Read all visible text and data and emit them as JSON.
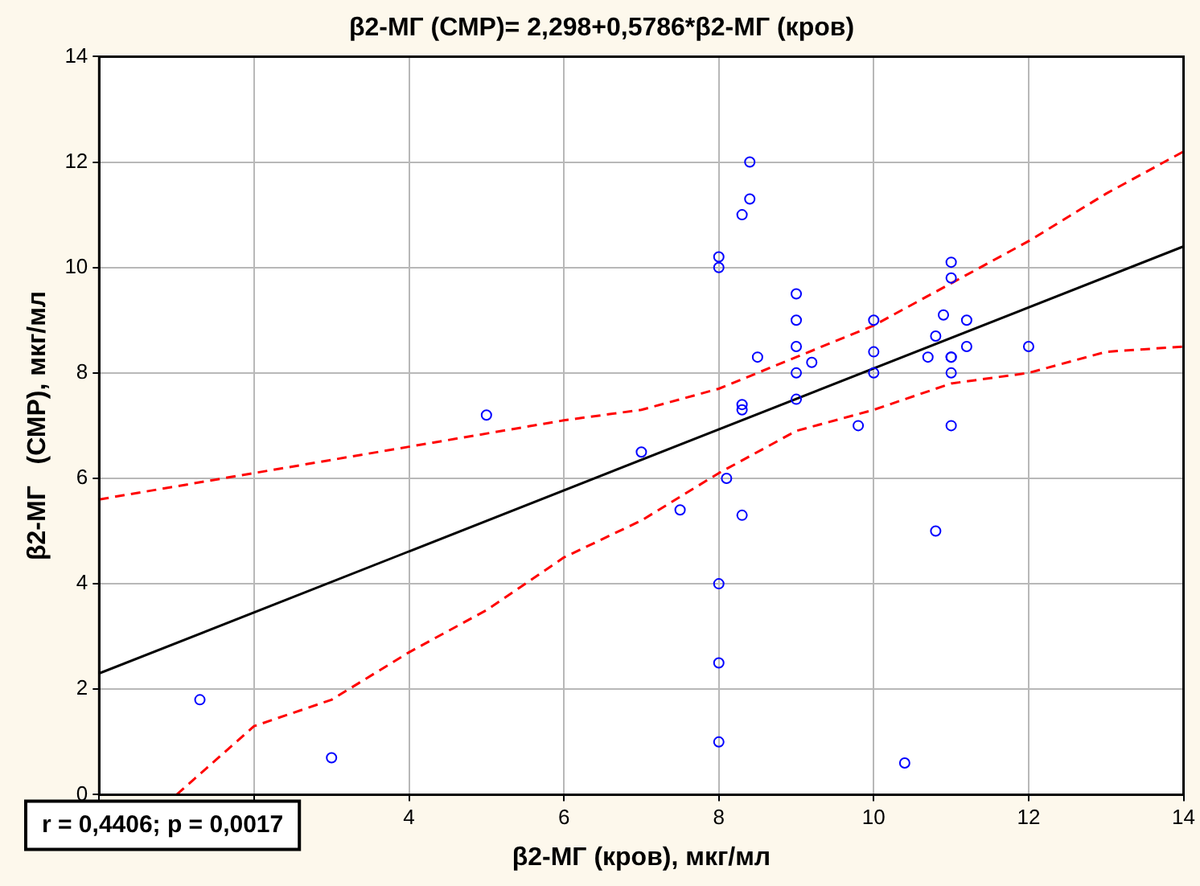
{
  "chart_data": {
    "type": "scatter",
    "title": "β2-МГ (СМР)= 2,298+0,5786*β2-МГ (кров)",
    "xlabel": "β2-МГ (кров), мкг/мл",
    "ylabel": "β2-МГ   (СМР), мкг/мл",
    "annotations": [
      "r = 0,4406; p = 0,0017"
    ],
    "xlim": [
      0,
      14
    ],
    "xticks": [
      {
        "value": 0,
        "label": null
      },
      {
        "value": 2,
        "label": null
      },
      4,
      6,
      8,
      10,
      12,
      14
    ],
    "ylim": [
      0,
      14
    ],
    "yticks": [
      0,
      2,
      4,
      6,
      8,
      10,
      12,
      14
    ],
    "grid": true,
    "marker": "circle",
    "series": [
      {
        "color": "#0000ff",
        "x": [
          1.3,
          3.0,
          5.0,
          7.0,
          7.5,
          8.0,
          8.0,
          8.0,
          8.0,
          8.0,
          8.1,
          8.3,
          8.3,
          8.3,
          8.3,
          8.4,
          8.4,
          8.5,
          9.0,
          9.0,
          9.0,
          9.0,
          9.0,
          9.2,
          9.8,
          10.0,
          10.0,
          10.0,
          10.4,
          10.7,
          10.8,
          10.8,
          10.9,
          11.0,
          11.0,
          11.0,
          11.0,
          11.0,
          11.0,
          11.2,
          11.2,
          12.0
        ],
        "values": [
          1.8,
          0.7,
          7.2,
          6.5,
          5.4,
          10.2,
          10.0,
          4.0,
          2.5,
          1.0,
          6.0,
          11.0,
          7.4,
          7.3,
          5.3,
          12.0,
          11.3,
          8.3,
          9.5,
          9.0,
          8.5,
          8.0,
          7.5,
          8.2,
          7.0,
          9.0,
          8.4,
          8.0,
          0.6,
          8.3,
          8.7,
          5.0,
          9.1,
          10.1,
          9.8,
          8.3,
          8.0,
          7.0,
          8.3,
          9.0,
          8.5,
          8.5
        ]
      },
      {
        "type": "line",
        "color": "#000000",
        "line_style": "solid",
        "marker": "none",
        "x": [
          0,
          14
        ],
        "values": [
          2.3,
          10.4
        ]
      },
      {
        "type": "line",
        "color": "#ff0000",
        "line_style": "dashed",
        "marker": "none",
        "x": [
          0,
          2,
          4,
          6,
          7,
          8,
          9,
          10,
          11,
          12,
          13,
          14
        ],
        "values": [
          5.6,
          6.1,
          6.6,
          7.1,
          7.3,
          7.7,
          8.3,
          8.9,
          9.7,
          10.5,
          11.4,
          12.2
        ]
      },
      {
        "type": "line",
        "color": "#ff0000",
        "line_style": "dashed",
        "marker": "none",
        "x": [
          1,
          2,
          3,
          4,
          5,
          6,
          7,
          8,
          9,
          10,
          11,
          12,
          13,
          14
        ],
        "values": [
          0,
          1.3,
          1.8,
          2.7,
          3.5,
          4.5,
          5.2,
          6.1,
          6.9,
          7.3,
          7.8,
          8.0,
          8.4,
          8.5
        ]
      }
    ]
  }
}
